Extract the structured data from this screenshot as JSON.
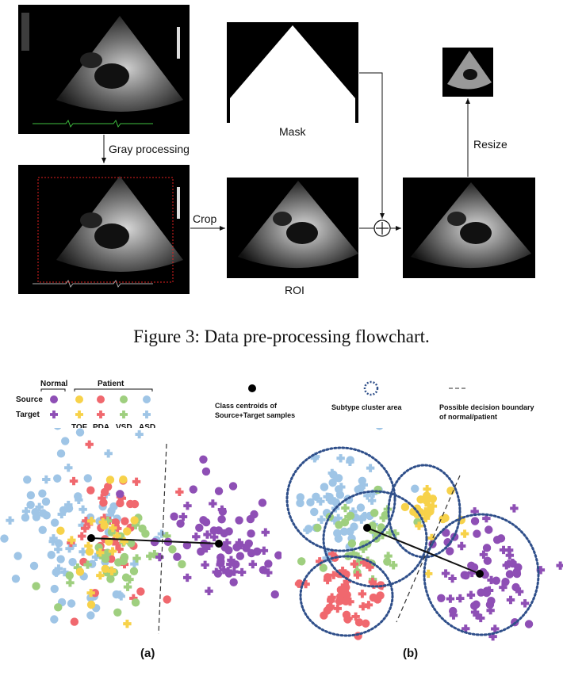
{
  "flowchart": {
    "step1_label": "Gray processing",
    "step2_label": "Crop",
    "mask_label": "Mask",
    "roi_label": "ROI",
    "resize_label": "Resize",
    "operator_symbol": "⊕"
  },
  "caption": "Figure 3: Data pre-processing flowchart.",
  "legend": {
    "normal_header": "Normal",
    "patient_header": "Patient",
    "source_label": "Source",
    "target_label": "Target",
    "categories": [
      "TOF",
      "PDA",
      "VSD",
      "ASD"
    ],
    "centroid_label_line1": "Class centroids of",
    "centroid_label_line2": "Source+Target samples",
    "cluster_label": "Subtype cluster area",
    "boundary_label_line1": "Possible decision boundary",
    "boundary_label_line2": "of normal/patient"
  },
  "colors": {
    "normal": "#8e4fb5",
    "TOF": "#f7d24a",
    "PDA": "#f0686e",
    "VSD": "#9fcf7f",
    "ASD": "#9fc5e6",
    "cluster_outline": "#2f4f8a"
  },
  "panel_labels": {
    "a": "(a)",
    "b": "(b)"
  }
}
